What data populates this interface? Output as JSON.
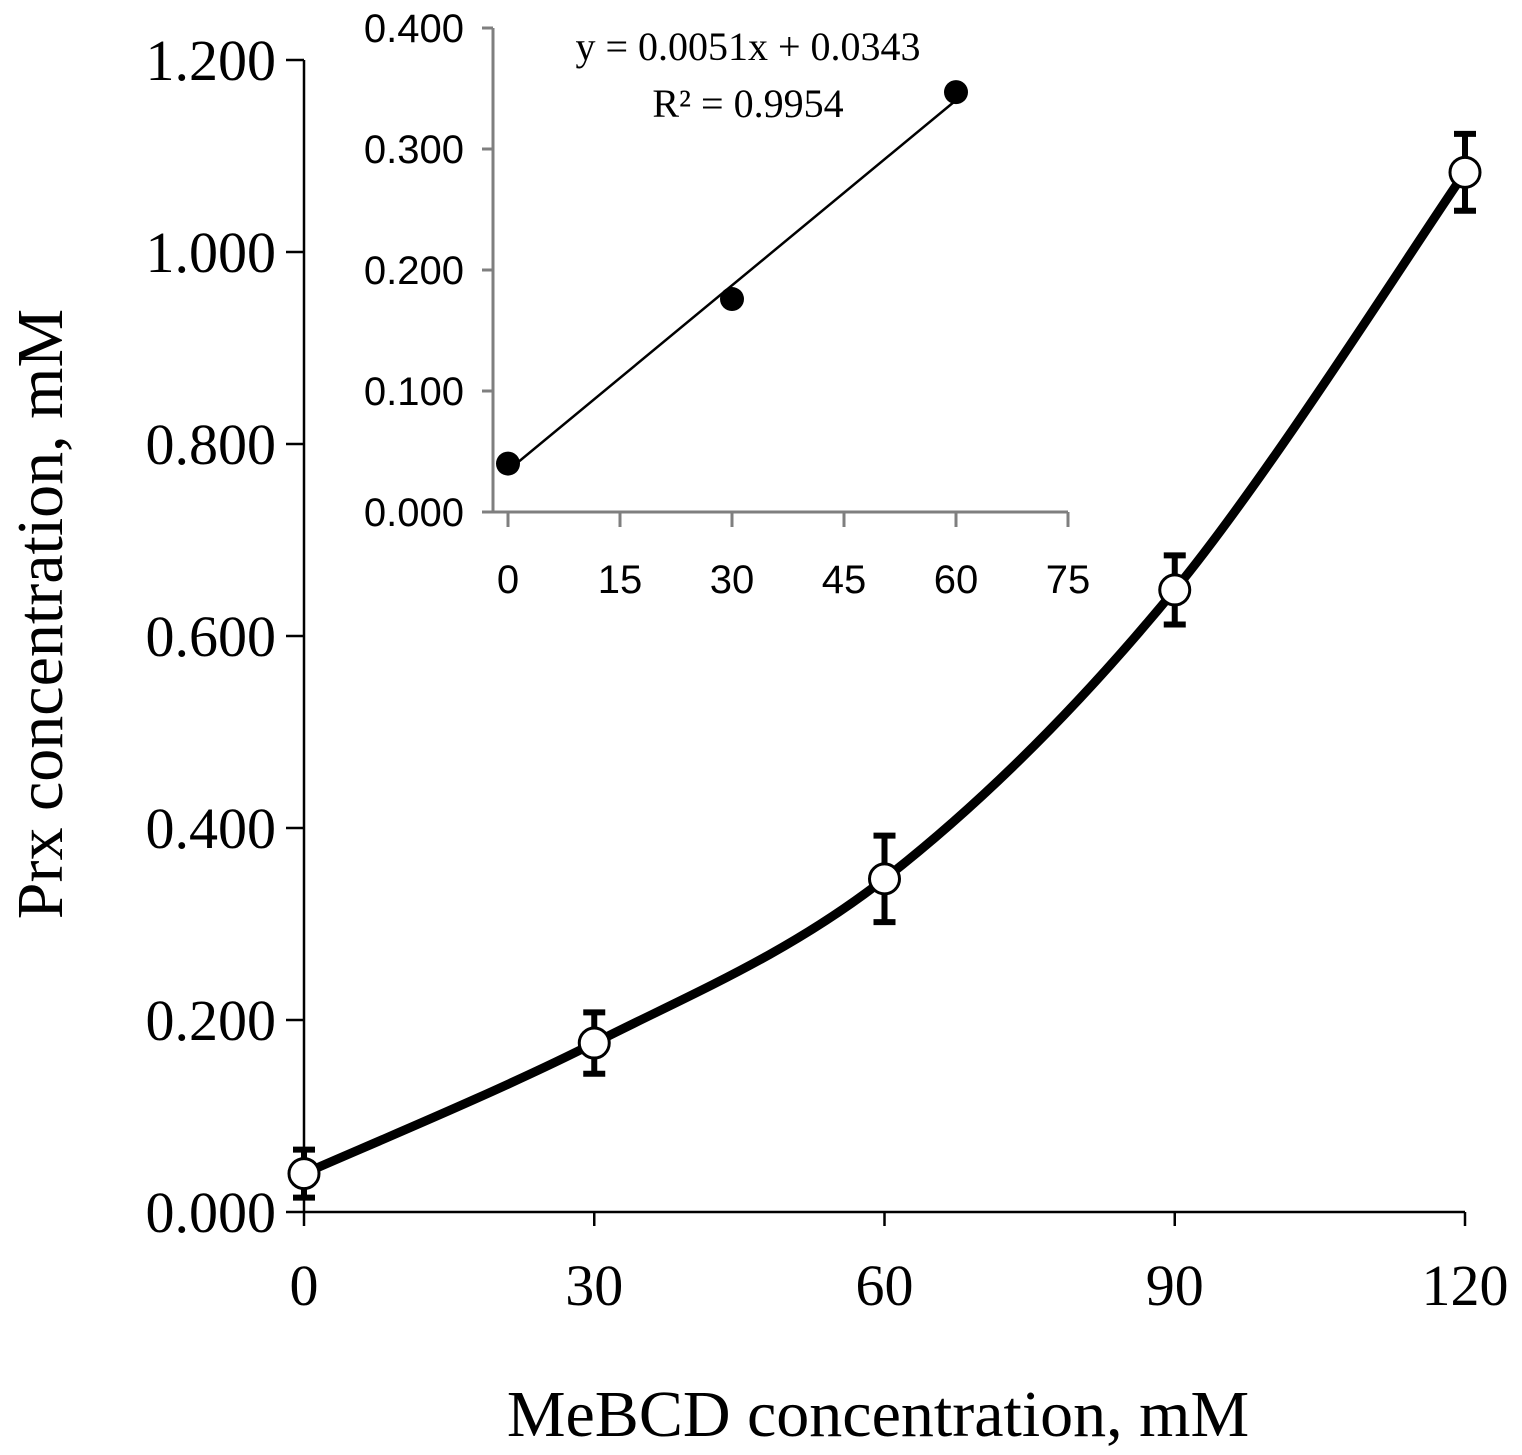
{
  "chart_data": [
    {
      "type": "line",
      "id": "main",
      "xlabel": "MeBCD concentration, mM",
      "ylabel": "Prx concentration, mM",
      "xlim": [
        0,
        120
      ],
      "ylim": [
        0,
        1.2
      ],
      "x_ticks": [
        0,
        30,
        60,
        90,
        120
      ],
      "x_tick_labels": [
        "0",
        "30",
        "60",
        "90",
        "120"
      ],
      "y_ticks": [
        0,
        0.2,
        0.4,
        0.6,
        0.8,
        1.0,
        1.2
      ],
      "y_tick_labels": [
        "0.000",
        "0.200",
        "0.400",
        "0.600",
        "0.800",
        "1.000",
        "1.200"
      ],
      "series": [
        {
          "name": "Prx",
          "x": [
            0,
            30,
            60,
            90,
            120
          ],
          "y": [
            0.04,
            0.176,
            0.347,
            0.648,
            1.083
          ],
          "error": [
            0.025,
            0.032,
            0.045,
            0.036,
            0.04
          ],
          "marker": "open-circle",
          "smooth": true
        }
      ]
    },
    {
      "type": "scatter",
      "id": "inset",
      "xlim": [
        0,
        75
      ],
      "ylim": [
        0,
        0.4
      ],
      "x_ticks": [
        0,
        15,
        30,
        45,
        60,
        75
      ],
      "x_tick_labels": [
        "0",
        "15",
        "30",
        "45",
        "60",
        "75"
      ],
      "y_ticks": [
        0,
        0.1,
        0.2,
        0.3,
        0.4
      ],
      "y_tick_labels": [
        "0.000",
        "0.100",
        "0.200",
        "0.300",
        "0.400"
      ],
      "series": [
        {
          "name": "Prx",
          "x": [
            0,
            30,
            60
          ],
          "y": [
            0.04,
            0.176,
            0.347
          ],
          "marker": "filled-circle"
        }
      ],
      "trendline": {
        "slope": 0.0051,
        "intercept": 0.0343,
        "x_range": [
          0,
          60
        ]
      },
      "annotations": [
        "y = 0.0051x + 0.0343",
        "R² = 0.9954"
      ]
    }
  ]
}
